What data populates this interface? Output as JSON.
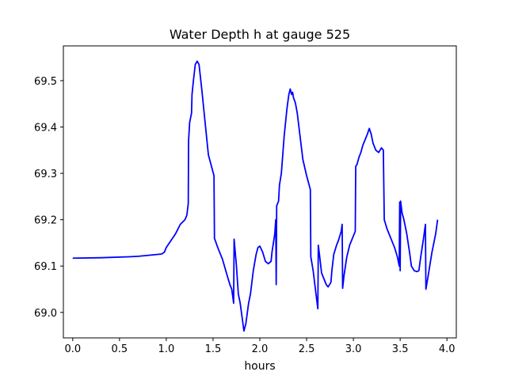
{
  "chart_data": {
    "type": "line",
    "title": "Water Depth h at gauge 525",
    "xlabel": "hours",
    "ylabel": "",
    "xlim": [
      -0.1,
      4.1
    ],
    "ylim": [
      68.945,
      69.575
    ],
    "x_ticks": [
      0.0,
      0.5,
      1.0,
      1.5,
      2.0,
      2.5,
      3.0,
      3.5,
      4.0
    ],
    "x_tick_labels": [
      "0.0",
      "0.5",
      "1.0",
      "1.5",
      "2.0",
      "2.5",
      "3.0",
      "3.5",
      "4.0"
    ],
    "y_ticks": [
      69.0,
      69.1,
      69.2,
      69.3,
      69.4,
      69.5
    ],
    "y_tick_labels": [
      "69.0",
      "69.1",
      "69.2",
      "69.3",
      "69.4",
      "69.5"
    ],
    "grid": false,
    "series": [
      {
        "color": "#0000ff",
        "points": [
          [
            0.0,
            69.117
          ],
          [
            0.3,
            69.118
          ],
          [
            0.6,
            69.12
          ],
          [
            0.7,
            69.121
          ],
          [
            0.8,
            69.123
          ],
          [
            0.95,
            69.126
          ],
          [
            0.98,
            69.13
          ],
          [
            1.0,
            69.14
          ],
          [
            1.05,
            69.155
          ],
          [
            1.1,
            69.17
          ],
          [
            1.15,
            69.19
          ],
          [
            1.2,
            69.2
          ],
          [
            1.22,
            69.21
          ],
          [
            1.235,
            69.235
          ],
          [
            1.238,
            69.37
          ],
          [
            1.25,
            69.41
          ],
          [
            1.27,
            69.43
          ],
          [
            1.275,
            69.47
          ],
          [
            1.29,
            69.5
          ],
          [
            1.31,
            69.535
          ],
          [
            1.33,
            69.542
          ],
          [
            1.35,
            69.535
          ],
          [
            1.38,
            69.48
          ],
          [
            1.42,
            69.4
          ],
          [
            1.45,
            69.34
          ],
          [
            1.49,
            69.31
          ],
          [
            1.51,
            69.295
          ],
          [
            1.515,
            69.16
          ],
          [
            1.55,
            69.14
          ],
          [
            1.6,
            69.115
          ],
          [
            1.65,
            69.08
          ],
          [
            1.68,
            69.06
          ],
          [
            1.7,
            69.05
          ],
          [
            1.72,
            69.02
          ],
          [
            1.725,
            69.158
          ],
          [
            1.75,
            69.1
          ],
          [
            1.77,
            69.04
          ],
          [
            1.78,
            69.03
          ],
          [
            1.79,
            69.02
          ],
          [
            1.81,
            68.99
          ],
          [
            1.83,
            68.96
          ],
          [
            1.85,
            68.975
          ],
          [
            1.88,
            69.02
          ],
          [
            1.9,
            69.04
          ],
          [
            1.93,
            69.09
          ],
          [
            1.96,
            69.125
          ],
          [
            1.98,
            69.14
          ],
          [
            2.0,
            69.143
          ],
          [
            2.03,
            69.13
          ],
          [
            2.06,
            69.11
          ],
          [
            2.09,
            69.105
          ],
          [
            2.12,
            69.11
          ],
          [
            2.13,
            69.13
          ],
          [
            2.16,
            69.17
          ],
          [
            2.17,
            69.2
          ],
          [
            2.175,
            69.06
          ],
          [
            2.18,
            69.23
          ],
          [
            2.2,
            69.24
          ],
          [
            2.21,
            69.275
          ],
          [
            2.23,
            69.3
          ],
          [
            2.26,
            69.38
          ],
          [
            2.29,
            69.44
          ],
          [
            2.31,
            69.47
          ],
          [
            2.325,
            69.482
          ],
          [
            2.34,
            69.47
          ],
          [
            2.35,
            69.475
          ],
          [
            2.36,
            69.463
          ],
          [
            2.38,
            69.452
          ],
          [
            2.4,
            69.43
          ],
          [
            2.43,
            69.38
          ],
          [
            2.46,
            69.33
          ],
          [
            2.5,
            69.295
          ],
          [
            2.54,
            69.265
          ],
          [
            2.545,
            69.12
          ],
          [
            2.57,
            69.09
          ],
          [
            2.6,
            69.04
          ],
          [
            2.62,
            69.008
          ],
          [
            2.625,
            69.145
          ],
          [
            2.64,
            69.12
          ],
          [
            2.66,
            69.085
          ],
          [
            2.68,
            69.075
          ],
          [
            2.71,
            69.06
          ],
          [
            2.73,
            69.055
          ],
          [
            2.76,
            69.065
          ],
          [
            2.77,
            69.09
          ],
          [
            2.79,
            69.125
          ],
          [
            2.82,
            69.145
          ],
          [
            2.84,
            69.155
          ],
          [
            2.87,
            69.175
          ],
          [
            2.88,
            69.19
          ],
          [
            2.885,
            69.052
          ],
          [
            2.9,
            69.08
          ],
          [
            2.93,
            69.12
          ],
          [
            2.96,
            69.145
          ],
          [
            2.99,
            69.16
          ],
          [
            3.02,
            69.175
          ],
          [
            3.025,
            69.315
          ],
          [
            3.04,
            69.32
          ],
          [
            3.06,
            69.335
          ],
          [
            3.08,
            69.345
          ],
          [
            3.1,
            69.36
          ],
          [
            3.13,
            69.375
          ],
          [
            3.15,
            69.385
          ],
          [
            3.17,
            69.397
          ],
          [
            3.19,
            69.385
          ],
          [
            3.21,
            69.365
          ],
          [
            3.24,
            69.35
          ],
          [
            3.27,
            69.345
          ],
          [
            3.3,
            69.355
          ],
          [
            3.32,
            69.35
          ],
          [
            3.33,
            69.2
          ],
          [
            3.36,
            69.18
          ],
          [
            3.4,
            69.16
          ],
          [
            3.44,
            69.14
          ],
          [
            3.47,
            69.12
          ],
          [
            3.49,
            69.1
          ],
          [
            3.495,
            69.238
          ],
          [
            3.5,
            69.09
          ],
          [
            3.505,
            69.24
          ],
          [
            3.52,
            69.215
          ],
          [
            3.54,
            69.2
          ],
          [
            3.57,
            69.17
          ],
          [
            3.6,
            69.13
          ],
          [
            3.62,
            69.1
          ],
          [
            3.65,
            69.09
          ],
          [
            3.68,
            69.088
          ],
          [
            3.7,
            69.09
          ],
          [
            3.72,
            69.12
          ],
          [
            3.75,
            69.16
          ],
          [
            3.77,
            69.19
          ],
          [
            3.775,
            69.05
          ],
          [
            3.8,
            69.08
          ],
          [
            3.84,
            69.13
          ],
          [
            3.88,
            69.17
          ],
          [
            3.9,
            69.2
          ]
        ]
      }
    ]
  }
}
